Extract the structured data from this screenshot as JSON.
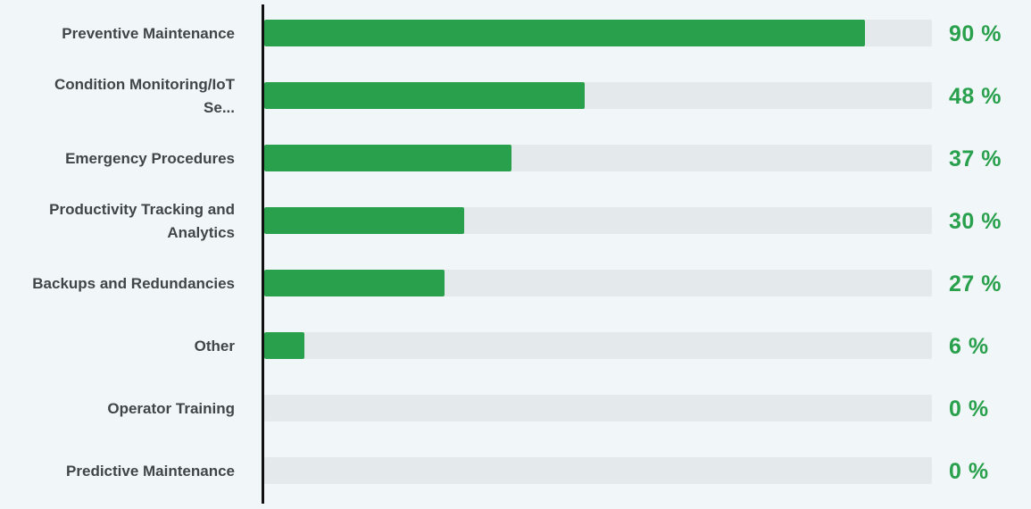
{
  "colors": {
    "bar": "#29a04c",
    "track": "#e4e9eb",
    "value_text": "#29a04c",
    "label_text": "#404549",
    "axis": "#111111",
    "background": "#f1f6f9"
  },
  "chart_data": {
    "type": "bar",
    "orientation": "horizontal",
    "categories": [
      "Preventive Maintenance",
      "Condition Monitoring/IoT\nSe...",
      "Emergency Procedures",
      "Productivity Tracking and\nAnalytics",
      "Backups and Redundancies",
      "Other",
      "Operator Training",
      "Predictive Maintenance"
    ],
    "values": [
      90,
      48,
      37,
      30,
      27,
      6,
      0,
      0
    ],
    "value_labels": [
      "90 %",
      "48 %",
      "37 %",
      "30 %",
      "27 %",
      "6 %",
      "0 %",
      "0 %"
    ],
    "xlim": [
      0,
      100
    ],
    "grid": false,
    "legend": "none"
  }
}
